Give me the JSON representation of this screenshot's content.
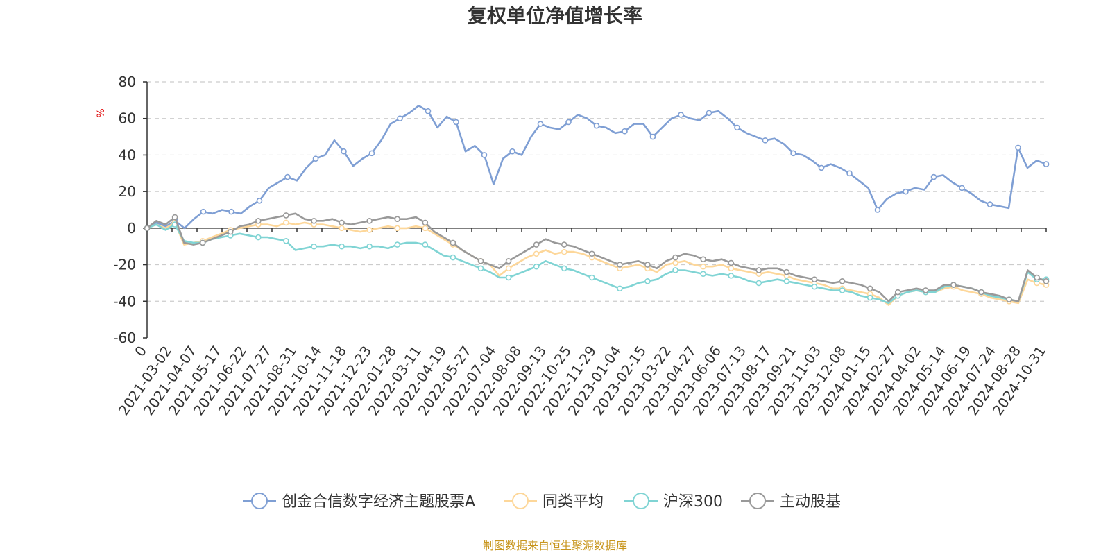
{
  "chart_data": {
    "type": "line",
    "title": "复权单位净值增长率",
    "y_unit": "%",
    "ylim": [
      -60,
      80
    ],
    "y_ticks": [
      80,
      60,
      40,
      20,
      0,
      -20,
      -40,
      -60
    ],
    "grid": true,
    "legend_position": "bottom",
    "source": "制图数据来自恒生聚源数据库",
    "x_tick_labels": [
      "0",
      "2021-03-02",
      "2021-04-07",
      "2021-05-17",
      "2021-06-22",
      "2021-07-27",
      "2021-08-31",
      "2021-10-14",
      "2021-11-18",
      "2021-12-23",
      "2022-01-28",
      "2022-03-11",
      "2022-04-19",
      "2022-05-27",
      "2022-07-04",
      "2022-08-08",
      "2022-09-13",
      "2022-10-25",
      "2022-11-29",
      "2023-01-04",
      "2023-02-15",
      "2023-03-22",
      "2023-04-27",
      "2023-06-06",
      "2023-07-13",
      "2023-08-17",
      "2023-09-21",
      "2023-11-03",
      "2023-12-08",
      "2024-01-15",
      "2024-02-27",
      "2024-04-02",
      "2024-05-14",
      "2024-06-19",
      "2024-07-24",
      "2024-08-28",
      "2024-10-31"
    ],
    "series": [
      {
        "name": "创金合信数字经济主题股票A",
        "color": "#7f9fd4",
        "values": [
          0,
          3,
          1,
          4,
          0,
          5,
          9,
          8,
          10,
          9,
          8,
          12,
          15,
          22,
          25,
          28,
          26,
          33,
          38,
          40,
          48,
          42,
          34,
          38,
          41,
          48,
          57,
          60,
          63,
          67,
          64,
          55,
          61,
          58,
          42,
          45,
          40,
          24,
          38,
          42,
          40,
          50,
          57,
          55,
          54,
          58,
          62,
          60,
          56,
          55,
          52,
          53,
          57,
          57,
          50,
          55,
          60,
          62,
          60,
          59,
          63,
          64,
          60,
          55,
          52,
          50,
          48,
          49,
          46,
          41,
          40,
          37,
          33,
          35,
          33,
          30,
          26,
          22,
          10,
          16,
          19,
          20,
          22,
          21,
          28,
          29,
          25,
          22,
          19,
          15,
          13,
          12,
          11,
          44,
          33,
          37,
          35
        ]
      },
      {
        "name": "同类平均",
        "color": "#fdd79a",
        "values": [
          0,
          2,
          0,
          3,
          -9,
          -8,
          -7,
          -5,
          -3,
          -1,
          0,
          1,
          2,
          2,
          1,
          3,
          2,
          3,
          2,
          2,
          1,
          0,
          -1,
          -2,
          -1,
          0,
          1,
          0,
          0,
          1,
          0,
          -3,
          -6,
          -9,
          -12,
          -15,
          -18,
          -20,
          -26,
          -22,
          -19,
          -16,
          -14,
          -12,
          -14,
          -13,
          -13,
          -14,
          -16,
          -18,
          -20,
          -22,
          -21,
          -20,
          -22,
          -24,
          -20,
          -19,
          -18,
          -20,
          -21,
          -21,
          -20,
          -22,
          -23,
          -24,
          -25,
          -24,
          -25,
          -26,
          -28,
          -29,
          -30,
          -31,
          -33,
          -33,
          -34,
          -35,
          -36,
          -38,
          -42,
          -37,
          -35,
          -34,
          -35,
          -35,
          -33,
          -32,
          -34,
          -35,
          -36,
          -38,
          -39,
          -40,
          -41,
          -28,
          -30,
          -31
        ]
      },
      {
        "name": "沪深300",
        "color": "#80d4d4",
        "values": [
          0,
          2,
          -1,
          2,
          -7,
          -8,
          -8,
          -6,
          -5,
          -4,
          -3,
          -4,
          -5,
          -5,
          -6,
          -7,
          -12,
          -11,
          -10,
          -10,
          -9,
          -10,
          -10,
          -11,
          -10,
          -10,
          -11,
          -9,
          -8,
          -8,
          -9,
          -12,
          -15,
          -16,
          -18,
          -20,
          -22,
          -24,
          -27,
          -27,
          -25,
          -23,
          -21,
          -18,
          -20,
          -22,
          -23,
          -25,
          -27,
          -29,
          -31,
          -33,
          -32,
          -30,
          -29,
          -28,
          -25,
          -23,
          -23,
          -24,
          -25,
          -26,
          -25,
          -26,
          -27,
          -29,
          -30,
          -29,
          -28,
          -29,
          -30,
          -31,
          -32,
          -33,
          -34,
          -34,
          -35,
          -37,
          -38,
          -39,
          -41,
          -37,
          -35,
          -34,
          -35,
          -35,
          -32,
          -31,
          -32,
          -33,
          -35,
          -37,
          -38,
          -39,
          -40,
          -24,
          -28,
          -28
        ]
      },
      {
        "name": "主动股基",
        "color": "#999999",
        "values": [
          0,
          4,
          2,
          6,
          -8,
          -9,
          -8,
          -6,
          -4,
          -2,
          1,
          2,
          4,
          5,
          6,
          7,
          8,
          5,
          4,
          4,
          5,
          3,
          2,
          3,
          4,
          5,
          6,
          5,
          5,
          6,
          3,
          -2,
          -5,
          -8,
          -12,
          -15,
          -18,
          -20,
          -22,
          -18,
          -15,
          -12,
          -9,
          -6,
          -8,
          -9,
          -10,
          -12,
          -14,
          -16,
          -18,
          -20,
          -19,
          -18,
          -20,
          -22,
          -18,
          -16,
          -14,
          -15,
          -17,
          -18,
          -17,
          -19,
          -21,
          -22,
          -23,
          -22,
          -22,
          -24,
          -26,
          -27,
          -28,
          -29,
          -30,
          -29,
          -30,
          -31,
          -33,
          -35,
          -40,
          -35,
          -34,
          -33,
          -34,
          -34,
          -31,
          -31,
          -32,
          -33,
          -35,
          -36,
          -37,
          -39,
          -40,
          -23,
          -27,
          -29
        ]
      }
    ]
  }
}
